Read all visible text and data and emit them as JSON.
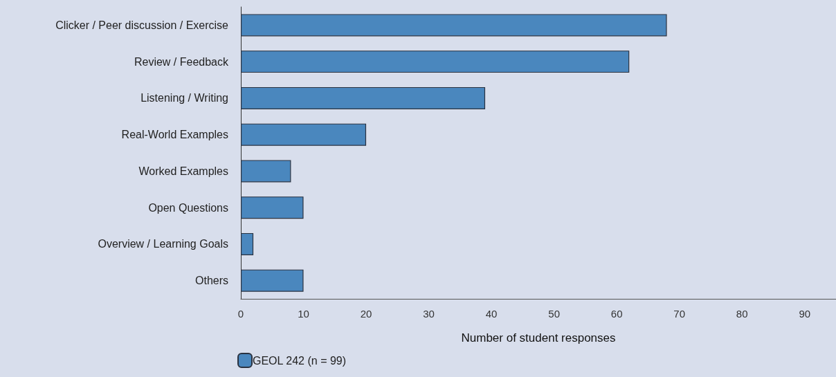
{
  "chart_data": {
    "type": "bar",
    "orientation": "horizontal",
    "xlabel": "Number of student responses",
    "categories": [
      "Clicker / Peer discussion / Exercise",
      "Review / Feedback",
      "Listening / Writing",
      "Real-World Examples",
      "Worked Examples",
      "Open Questions",
      "Overview / Learning Goals",
      "Others"
    ],
    "series": [
      {
        "name": "GEOL 242 (n = 99)",
        "color": "#4a87be",
        "values": [
          68,
          62,
          39,
          20,
          8,
          10,
          2,
          10
        ]
      }
    ],
    "xlim": [
      0,
      95
    ],
    "xticks": [
      0,
      10,
      20,
      30,
      40,
      50,
      60,
      70,
      80,
      90
    ],
    "grid": false,
    "legend": "bottom left"
  }
}
